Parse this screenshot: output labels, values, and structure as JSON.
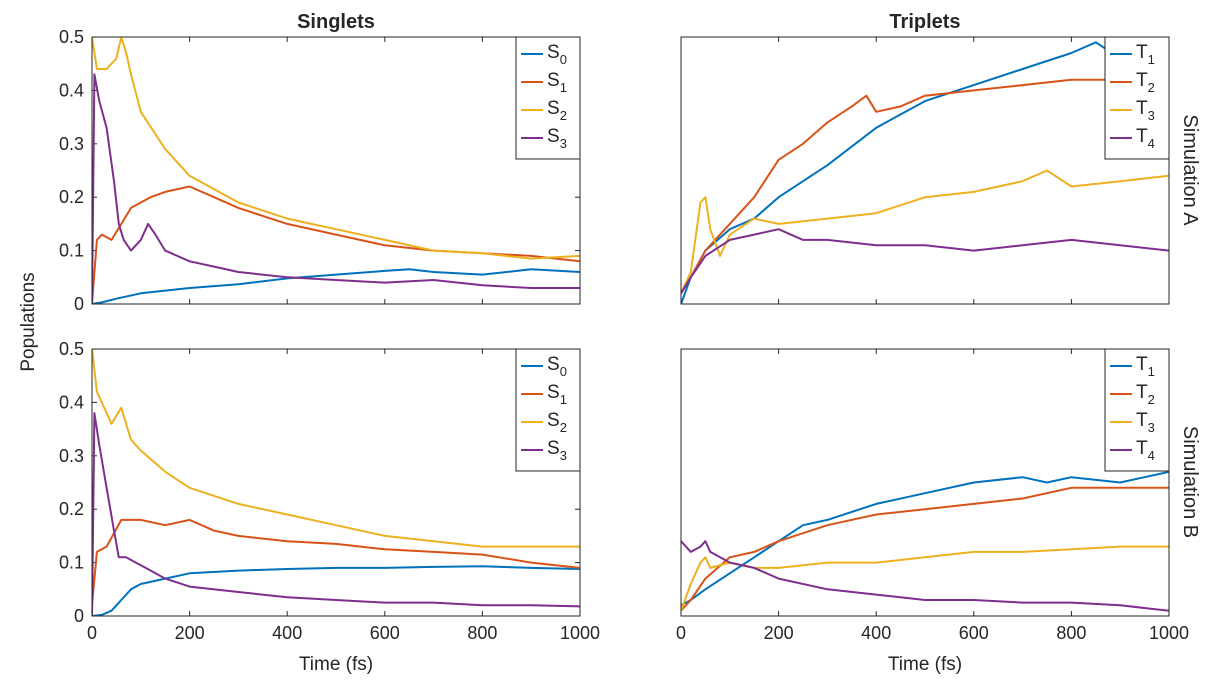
{
  "figure": {
    "ylabel": "Populations",
    "xlabel": "Time (fs)",
    "column_titles": [
      "Singlets",
      "Triplets"
    ],
    "row_labels": [
      "Simulation A",
      "Simulation B"
    ]
  },
  "colors": {
    "blue": "#0072BD",
    "orange": "#D95319",
    "yellow": "#EDB120",
    "purple": "#7E2F8E"
  },
  "chart_data": [
    {
      "type": "line",
      "title": "Singlets",
      "row": "Simulation A",
      "xlim": [
        0,
        1000
      ],
      "ylim": [
        0,
        0.5
      ],
      "xticks": [
        0,
        200,
        400,
        600,
        800,
        1000
      ],
      "yticks": [
        0,
        0.1,
        0.2,
        0.3,
        0.4,
        0.5
      ],
      "show_x_ticklabels": false,
      "show_y_ticklabels": true,
      "legend_position": "top-right",
      "series": [
        {
          "base": "S",
          "sub": "0",
          "color": "#0072BD",
          "x": [
            0,
            20,
            50,
            100,
            150,
            200,
            300,
            400,
            500,
            600,
            650,
            700,
            800,
            900,
            1000
          ],
          "y": [
            0,
            0.003,
            0.01,
            0.02,
            0.025,
            0.03,
            0.037,
            0.048,
            0.055,
            0.062,
            0.065,
            0.06,
            0.055,
            0.065,
            0.06
          ]
        },
        {
          "base": "S",
          "sub": "1",
          "color": "#D95319",
          "x": [
            0,
            10,
            20,
            40,
            60,
            80,
            100,
            120,
            150,
            200,
            250,
            300,
            400,
            500,
            600,
            700,
            800,
            900,
            1000
          ],
          "y": [
            0,
            0.12,
            0.13,
            0.12,
            0.15,
            0.18,
            0.19,
            0.2,
            0.21,
            0.22,
            0.2,
            0.18,
            0.15,
            0.13,
            0.11,
            0.1,
            0.095,
            0.09,
            0.08
          ]
        },
        {
          "base": "S",
          "sub": "2",
          "color": "#EDB120",
          "x": [
            0,
            10,
            30,
            50,
            60,
            70,
            80,
            100,
            150,
            200,
            300,
            400,
            500,
            600,
            700,
            800,
            900,
            1000
          ],
          "y": [
            0.5,
            0.44,
            0.44,
            0.46,
            0.5,
            0.47,
            0.43,
            0.36,
            0.29,
            0.24,
            0.19,
            0.16,
            0.14,
            0.12,
            0.1,
            0.095,
            0.085,
            0.09
          ]
        },
        {
          "base": "S",
          "sub": "3",
          "color": "#7E2F8E",
          "x": [
            0,
            5,
            15,
            30,
            45,
            55,
            65,
            80,
            100,
            115,
            130,
            150,
            200,
            250,
            300,
            400,
            500,
            600,
            700,
            800,
            900,
            1000
          ],
          "y": [
            0,
            0.43,
            0.38,
            0.33,
            0.23,
            0.15,
            0.12,
            0.1,
            0.12,
            0.15,
            0.13,
            0.1,
            0.08,
            0.07,
            0.06,
            0.05,
            0.045,
            0.04,
            0.045,
            0.035,
            0.03,
            0.03
          ]
        }
      ]
    },
    {
      "type": "line",
      "title": "Triplets",
      "row": "Simulation A",
      "xlim": [
        0,
        1000
      ],
      "ylim": [
        0,
        0.5
      ],
      "xticks": [
        0,
        200,
        400,
        600,
        800,
        1000
      ],
      "yticks": [],
      "show_x_ticklabels": false,
      "show_y_ticklabels": false,
      "legend_position": "top-right",
      "series": [
        {
          "base": "T",
          "sub": "1",
          "color": "#0072BD",
          "x": [
            0,
            20,
            50,
            100,
            150,
            200,
            300,
            400,
            500,
            600,
            700,
            800,
            850,
            900,
            950,
            1000
          ],
          "y": [
            0,
            0.05,
            0.1,
            0.14,
            0.16,
            0.2,
            0.26,
            0.33,
            0.38,
            0.41,
            0.44,
            0.47,
            0.49,
            0.46,
            0.48,
            0.45
          ]
        },
        {
          "base": "T",
          "sub": "2",
          "color": "#D95319",
          "x": [
            0,
            20,
            50,
            100,
            150,
            200,
            250,
            300,
            350,
            380,
            400,
            450,
            500,
            600,
            700,
            800,
            900,
            1000
          ],
          "y": [
            0.02,
            0.05,
            0.1,
            0.15,
            0.2,
            0.27,
            0.3,
            0.34,
            0.37,
            0.39,
            0.36,
            0.37,
            0.39,
            0.4,
            0.41,
            0.42,
            0.42,
            0.42
          ]
        },
        {
          "base": "T",
          "sub": "3",
          "color": "#EDB120",
          "x": [
            0,
            20,
            40,
            50,
            60,
            80,
            100,
            150,
            200,
            300,
            400,
            500,
            600,
            700,
            750,
            800,
            900,
            1000
          ],
          "y": [
            0.02,
            0.06,
            0.19,
            0.2,
            0.14,
            0.09,
            0.13,
            0.16,
            0.15,
            0.16,
            0.17,
            0.2,
            0.21,
            0.23,
            0.25,
            0.22,
            0.23,
            0.24
          ]
        },
        {
          "base": "T",
          "sub": "4",
          "color": "#7E2F8E",
          "x": [
            0,
            20,
            50,
            100,
            150,
            200,
            250,
            300,
            400,
            500,
            600,
            700,
            800,
            900,
            1000
          ],
          "y": [
            0.02,
            0.05,
            0.09,
            0.12,
            0.13,
            0.14,
            0.12,
            0.12,
            0.11,
            0.11,
            0.1,
            0.11,
            0.12,
            0.11,
            0.1
          ]
        }
      ]
    },
    {
      "type": "line",
      "title": "Singlets",
      "row": "Simulation B",
      "xlim": [
        0,
        1000
      ],
      "ylim": [
        0,
        0.5
      ],
      "xticks": [
        0,
        200,
        400,
        600,
        800,
        1000
      ],
      "yticks": [
        0,
        0.1,
        0.2,
        0.3,
        0.4,
        0.5
      ],
      "show_x_ticklabels": true,
      "show_y_ticklabels": true,
      "legend_position": "top-right",
      "series": [
        {
          "base": "S",
          "sub": "0",
          "color": "#0072BD",
          "x": [
            0,
            20,
            40,
            60,
            80,
            100,
            150,
            200,
            300,
            400,
            500,
            600,
            700,
            800,
            900,
            1000
          ],
          "y": [
            0,
            0.002,
            0.01,
            0.03,
            0.05,
            0.06,
            0.07,
            0.08,
            0.085,
            0.088,
            0.09,
            0.09,
            0.092,
            0.093,
            0.09,
            0.088
          ]
        },
        {
          "base": "S",
          "sub": "1",
          "color": "#D95319",
          "x": [
            0,
            10,
            30,
            60,
            100,
            150,
            200,
            250,
            300,
            400,
            500,
            600,
            700,
            800,
            900,
            1000
          ],
          "y": [
            0.02,
            0.12,
            0.13,
            0.18,
            0.18,
            0.17,
            0.18,
            0.16,
            0.15,
            0.14,
            0.135,
            0.125,
            0.12,
            0.115,
            0.1,
            0.09
          ]
        },
        {
          "base": "S",
          "sub": "2",
          "color": "#EDB120",
          "x": [
            0,
            10,
            20,
            40,
            60,
            80,
            100,
            150,
            200,
            300,
            400,
            500,
            600,
            700,
            800,
            900,
            1000
          ],
          "y": [
            0.5,
            0.42,
            0.4,
            0.36,
            0.39,
            0.33,
            0.31,
            0.27,
            0.24,
            0.21,
            0.19,
            0.17,
            0.15,
            0.14,
            0.13,
            0.13,
            0.13
          ]
        },
        {
          "base": "S",
          "sub": "3",
          "color": "#7E2F8E",
          "x": [
            0,
            5,
            15,
            30,
            45,
            55,
            70,
            90,
            110,
            150,
            200,
            300,
            400,
            500,
            600,
            700,
            800,
            900,
            1000
          ],
          "y": [
            0,
            0.38,
            0.32,
            0.24,
            0.16,
            0.11,
            0.11,
            0.1,
            0.09,
            0.07,
            0.055,
            0.045,
            0.035,
            0.03,
            0.025,
            0.025,
            0.02,
            0.02,
            0.018
          ]
        }
      ]
    },
    {
      "type": "line",
      "title": "Triplets",
      "row": "Simulation B",
      "xlim": [
        0,
        1000
      ],
      "ylim": [
        0,
        0.5
      ],
      "xticks": [
        0,
        200,
        400,
        600,
        800,
        1000
      ],
      "yticks": [],
      "show_x_ticklabels": true,
      "show_y_ticklabels": false,
      "legend_position": "top-right",
      "series": [
        {
          "base": "T",
          "sub": "1",
          "color": "#0072BD",
          "x": [
            0,
            20,
            50,
            100,
            150,
            200,
            250,
            300,
            400,
            500,
            600,
            700,
            750,
            800,
            900,
            1000
          ],
          "y": [
            0.02,
            0.03,
            0.05,
            0.08,
            0.11,
            0.14,
            0.17,
            0.18,
            0.21,
            0.23,
            0.25,
            0.26,
            0.25,
            0.26,
            0.25,
            0.27
          ]
        },
        {
          "base": "T",
          "sub": "2",
          "color": "#D95319",
          "x": [
            0,
            20,
            50,
            100,
            150,
            200,
            300,
            400,
            500,
            600,
            700,
            800,
            900,
            1000
          ],
          "y": [
            0.01,
            0.03,
            0.07,
            0.11,
            0.12,
            0.14,
            0.17,
            0.19,
            0.2,
            0.21,
            0.22,
            0.24,
            0.24,
            0.24
          ]
        },
        {
          "base": "T",
          "sub": "3",
          "color": "#EDB120",
          "x": [
            0,
            20,
            40,
            50,
            60,
            100,
            150,
            200,
            300,
            400,
            500,
            600,
            700,
            800,
            900,
            1000
          ],
          "y": [
            0.01,
            0.06,
            0.1,
            0.11,
            0.09,
            0.1,
            0.09,
            0.09,
            0.1,
            0.1,
            0.11,
            0.12,
            0.12,
            0.125,
            0.13,
            0.13
          ]
        },
        {
          "base": "T",
          "sub": "4",
          "color": "#7E2F8E",
          "x": [
            0,
            20,
            40,
            50,
            60,
            100,
            150,
            200,
            300,
            400,
            500,
            600,
            700,
            800,
            900,
            1000
          ],
          "y": [
            0.14,
            0.12,
            0.13,
            0.14,
            0.12,
            0.1,
            0.09,
            0.07,
            0.05,
            0.04,
            0.03,
            0.03,
            0.025,
            0.025,
            0.02,
            0.01
          ]
        }
      ]
    }
  ]
}
